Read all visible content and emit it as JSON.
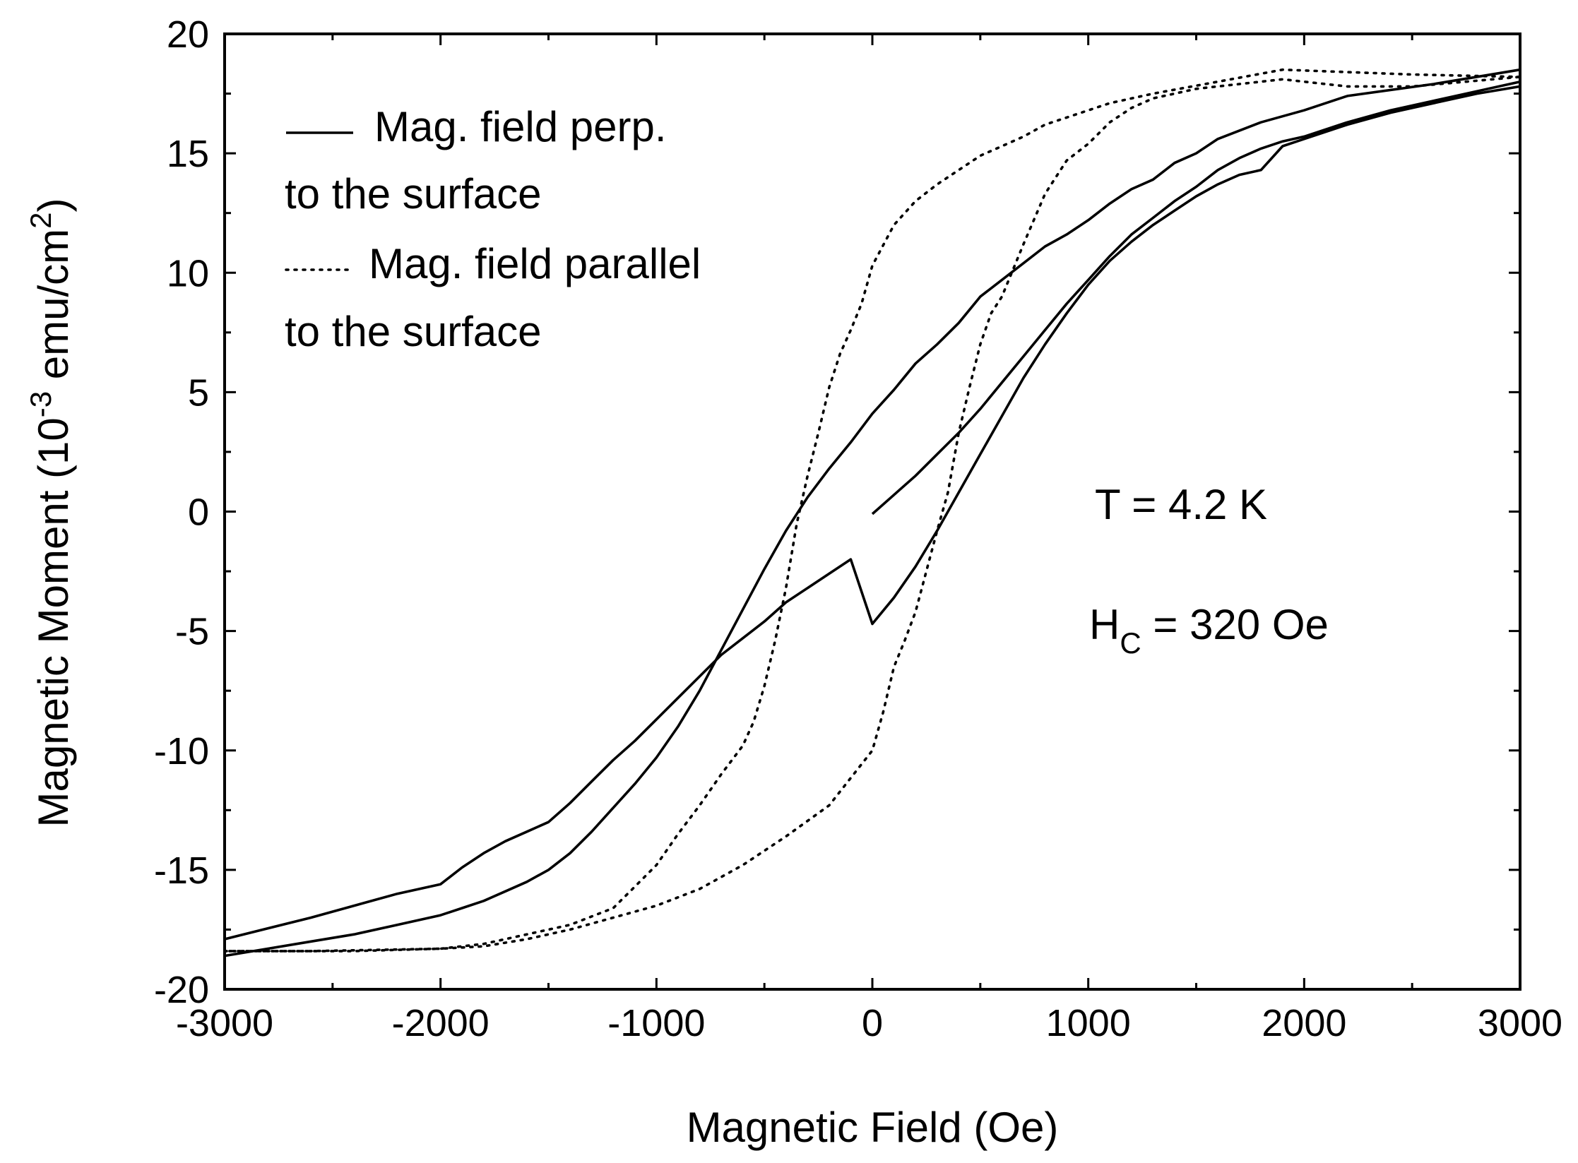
{
  "chart_data": {
    "type": "line",
    "title": "",
    "xlabel": "Magnetic Field (Oe)",
    "ylabel_main": "Magnetic Moment (10",
    "ylabel_exp1": "-3",
    "ylabel_mid": " emu/cm",
    "ylabel_exp2": "2",
    "ylabel_end": ")",
    "xlim": [
      -3000,
      3000
    ],
    "ylim": [
      -20,
      20
    ],
    "xticks": [
      -3000,
      -2000,
      -1000,
      0,
      1000,
      2000,
      3000
    ],
    "yticks": [
      -20,
      -15,
      -10,
      -5,
      0,
      5,
      10,
      15,
      20
    ],
    "xtick_labels": [
      "-3000",
      "-2000",
      "-1000",
      "0",
      "1000",
      "2000",
      "3000"
    ],
    "ytick_labels": [
      "-20",
      "-15",
      "-10",
      "-5",
      "0",
      "5",
      "10",
      "15",
      "20"
    ],
    "x_minor_step": 500,
    "y_minor_step": 2.5,
    "grid": false,
    "legend": {
      "position": "top-left",
      "entries": [
        {
          "line1": "Mag. field perp.",
          "line2": "to the surface"
        },
        {
          "line1": "Mag. field parallel",
          "line2": "to the surface"
        }
      ]
    },
    "annotations": {
      "temperature": "T = 4.2 K",
      "coercive_main": "H",
      "coercive_sub": "C",
      "coercive_rest": " = 320 Oe"
    },
    "series": [
      {
        "name": "Mag. field perp. to the surface (initial)",
        "style": "solid",
        "points": [
          [
            0,
            -0.1
          ],
          [
            100,
            0.7
          ],
          [
            200,
            1.5
          ],
          [
            300,
            2.4
          ],
          [
            400,
            3.3
          ],
          [
            500,
            4.3
          ],
          [
            600,
            5.4
          ],
          [
            700,
            6.5
          ],
          [
            800,
            7.6
          ],
          [
            900,
            8.7
          ],
          [
            1000,
            9.7
          ],
          [
            1100,
            10.7
          ],
          [
            1200,
            11.6
          ],
          [
            1300,
            12.3
          ],
          [
            1400,
            13.0
          ],
          [
            1500,
            13.6
          ],
          [
            1600,
            14.3
          ],
          [
            1700,
            14.8
          ],
          [
            1800,
            15.2
          ],
          [
            1900,
            15.5
          ],
          [
            2000,
            15.7
          ],
          [
            2200,
            16.3
          ],
          [
            2400,
            16.8
          ],
          [
            2600,
            17.2
          ],
          [
            2800,
            17.6
          ],
          [
            3000,
            18.0
          ]
        ]
      },
      {
        "name": "Mag. field perp. to the surface (descending)",
        "style": "solid",
        "points": [
          [
            3000,
            18.5
          ],
          [
            2600,
            17.9
          ],
          [
            2200,
            17.4
          ],
          [
            2000,
            16.8
          ],
          [
            1800,
            16.3
          ],
          [
            1600,
            15.6
          ],
          [
            1500,
            15.0
          ],
          [
            1400,
            14.6
          ],
          [
            1300,
            13.9
          ],
          [
            1200,
            13.5
          ],
          [
            1100,
            12.9
          ],
          [
            1000,
            12.2
          ],
          [
            900,
            11.6
          ],
          [
            800,
            11.1
          ],
          [
            700,
            10.4
          ],
          [
            600,
            9.7
          ],
          [
            500,
            9.0
          ],
          [
            400,
            7.9
          ],
          [
            300,
            7.0
          ],
          [
            200,
            6.2
          ],
          [
            100,
            5.1
          ],
          [
            0,
            4.1
          ],
          [
            -100,
            2.9
          ],
          [
            -200,
            1.8
          ],
          [
            -300,
            0.6
          ],
          [
            -400,
            -0.8
          ],
          [
            -500,
            -2.4
          ],
          [
            -600,
            -4.1
          ],
          [
            -700,
            -5.8
          ],
          [
            -800,
            -7.5
          ],
          [
            -900,
            -9.0
          ],
          [
            -1000,
            -10.3
          ],
          [
            -1100,
            -11.4
          ],
          [
            -1200,
            -12.4
          ],
          [
            -1300,
            -13.4
          ],
          [
            -1400,
            -14.3
          ],
          [
            -1500,
            -15.0
          ],
          [
            -1600,
            -15.5
          ],
          [
            -1700,
            -15.9
          ],
          [
            -1800,
            -16.3
          ],
          [
            -1900,
            -16.6
          ],
          [
            -2000,
            -16.9
          ],
          [
            -2200,
            -17.3
          ],
          [
            -2400,
            -17.7
          ],
          [
            -2600,
            -18.0
          ],
          [
            -2800,
            -18.3
          ],
          [
            -3000,
            -18.6
          ]
        ]
      },
      {
        "name": "Mag. field perp. to the surface (ascending)",
        "style": "solid",
        "points": [
          [
            -3000,
            -17.9
          ],
          [
            -2600,
            -17.0
          ],
          [
            -2200,
            -16.0
          ],
          [
            -2000,
            -15.6
          ],
          [
            -1900,
            -14.9
          ],
          [
            -1800,
            -14.3
          ],
          [
            -1700,
            -13.8
          ],
          [
            -1600,
            -13.4
          ],
          [
            -1500,
            -13.0
          ],
          [
            -1400,
            -12.2
          ],
          [
            -1300,
            -11.3
          ],
          [
            -1200,
            -10.4
          ],
          [
            -1100,
            -9.6
          ],
          [
            -1000,
            -8.7
          ],
          [
            -900,
            -7.8
          ],
          [
            -800,
            -6.9
          ],
          [
            -700,
            -6.0
          ],
          [
            -600,
            -5.3
          ],
          [
            -500,
            -4.6
          ],
          [
            -400,
            -3.8
          ],
          [
            -300,
            -3.2
          ],
          [
            -200,
            -2.6
          ],
          [
            -100,
            -2.0
          ],
          [
            0,
            -4.7
          ],
          [
            100,
            -3.6
          ],
          [
            200,
            -2.3
          ],
          [
            300,
            -0.8
          ],
          [
            400,
            0.8
          ],
          [
            500,
            2.4
          ],
          [
            600,
            4.0
          ],
          [
            700,
            5.6
          ],
          [
            800,
            7.0
          ],
          [
            900,
            8.3
          ],
          [
            1000,
            9.5
          ],
          [
            1100,
            10.5
          ],
          [
            1200,
            11.3
          ],
          [
            1300,
            12.0
          ],
          [
            1400,
            12.6
          ],
          [
            1500,
            13.2
          ],
          [
            1600,
            13.7
          ],
          [
            1700,
            14.1
          ],
          [
            1800,
            14.3
          ],
          [
            1900,
            15.3
          ],
          [
            2000,
            15.6
          ],
          [
            2200,
            16.2
          ],
          [
            2400,
            16.7
          ],
          [
            2600,
            17.1
          ],
          [
            2800,
            17.5
          ],
          [
            3000,
            17.8
          ]
        ]
      },
      {
        "name": "Mag. field parallel to the surface (descending)",
        "style": "dotted",
        "points": [
          [
            3000,
            18.2
          ],
          [
            2500,
            18.3
          ],
          [
            1900,
            18.5
          ],
          [
            1600,
            18.0
          ],
          [
            1300,
            17.5
          ],
          [
            1100,
            17.1
          ],
          [
            1000,
            16.8
          ],
          [
            900,
            16.5
          ],
          [
            800,
            16.2
          ],
          [
            700,
            15.7
          ],
          [
            600,
            15.3
          ],
          [
            500,
            14.9
          ],
          [
            400,
            14.3
          ],
          [
            300,
            13.7
          ],
          [
            200,
            13.0
          ],
          [
            100,
            12.0
          ],
          [
            0,
            10.3
          ],
          [
            -50,
            8.7
          ],
          [
            -100,
            7.6
          ],
          [
            -150,
            6.6
          ],
          [
            -200,
            5.2
          ],
          [
            -250,
            3.3
          ],
          [
            -300,
            1.5
          ],
          [
            -350,
            -0.5
          ],
          [
            -400,
            -3.2
          ],
          [
            -450,
            -5.4
          ],
          [
            -500,
            -7.3
          ],
          [
            -550,
            -8.8
          ],
          [
            -600,
            -9.8
          ],
          [
            -700,
            -11.0
          ],
          [
            -800,
            -12.3
          ],
          [
            -900,
            -13.5
          ],
          [
            -1000,
            -14.8
          ],
          [
            -1100,
            -15.7
          ],
          [
            -1200,
            -16.6
          ],
          [
            -1400,
            -17.3
          ],
          [
            -1600,
            -17.7
          ],
          [
            -1800,
            -18.1
          ],
          [
            -2000,
            -18.3
          ],
          [
            -2400,
            -18.4
          ],
          [
            -3000,
            -18.4
          ]
        ]
      },
      {
        "name": "Mag. field parallel to the surface (ascending)",
        "style": "dotted",
        "points": [
          [
            -3000,
            -18.4
          ],
          [
            -2600,
            -18.4
          ],
          [
            -2000,
            -18.3
          ],
          [
            -1800,
            -18.2
          ],
          [
            -1600,
            -17.9
          ],
          [
            -1400,
            -17.5
          ],
          [
            -1200,
            -17.0
          ],
          [
            -1000,
            -16.5
          ],
          [
            -800,
            -15.8
          ],
          [
            -600,
            -14.8
          ],
          [
            -400,
            -13.6
          ],
          [
            -200,
            -12.3
          ],
          [
            0,
            -10.0
          ],
          [
            50,
            -8.4
          ],
          [
            100,
            -6.5
          ],
          [
            150,
            -5.4
          ],
          [
            200,
            -4.2
          ],
          [
            250,
            -2.5
          ],
          [
            300,
            -0.8
          ],
          [
            350,
            0.8
          ],
          [
            400,
            3.3
          ],
          [
            450,
            5.2
          ],
          [
            500,
            7.0
          ],
          [
            550,
            8.3
          ],
          [
            600,
            9.0
          ],
          [
            700,
            11.2
          ],
          [
            800,
            13.3
          ],
          [
            900,
            14.7
          ],
          [
            1000,
            15.4
          ],
          [
            1100,
            16.3
          ],
          [
            1200,
            16.9
          ],
          [
            1300,
            17.3
          ],
          [
            1500,
            17.7
          ],
          [
            1700,
            17.9
          ],
          [
            1900,
            18.1
          ],
          [
            2000,
            18.0
          ],
          [
            2200,
            17.8
          ],
          [
            2500,
            17.8
          ],
          [
            3000,
            18.2
          ]
        ]
      }
    ]
  }
}
